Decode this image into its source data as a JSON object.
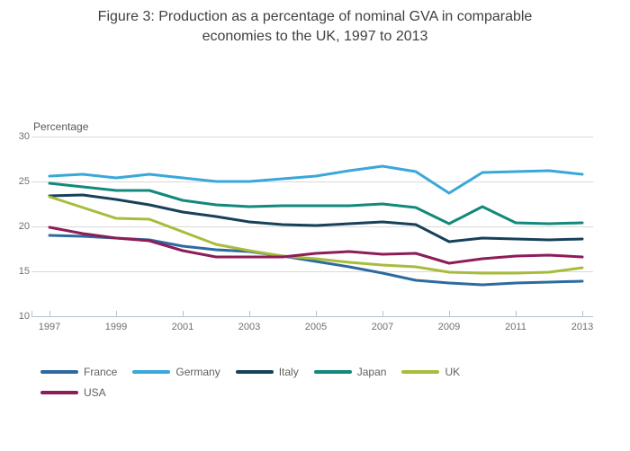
{
  "title": "Figure 3: Production as a percentage of nominal GVA in comparable economies to the UK, 1997 to 2013",
  "y_axis_label": "Percentage",
  "styles": {
    "grid_color": "#d9d9d9",
    "axis_color": "#b0c3d4",
    "title_color": "#3f3f3f",
    "tick_label_color": "#6f6f6f",
    "legend_text_color": "#606060"
  },
  "chart_data": {
    "type": "line",
    "title": "Figure 3: Production as a percentage of nominal GVA in comparable economies to the UK, 1997 to 2013",
    "xlabel": "",
    "ylabel": "Percentage",
    "x": [
      1997,
      1998,
      1999,
      2000,
      2001,
      2002,
      2003,
      2004,
      2005,
      2006,
      2007,
      2008,
      2009,
      2010,
      2011,
      2012,
      2013
    ],
    "x_tick_labels": [
      "1997",
      "1999",
      "2001",
      "2003",
      "2005",
      "2007",
      "2009",
      "2011",
      "2013"
    ],
    "y_ticks": [
      10,
      15,
      20,
      25,
      30
    ],
    "ylim": [
      10,
      30
    ],
    "grid": "horizontal",
    "legend_position": "bottom",
    "series": [
      {
        "name": "France",
        "color": "#2d6a9f",
        "values": [
          19.0,
          18.9,
          18.7,
          18.5,
          17.8,
          17.4,
          17.2,
          16.7,
          16.1,
          15.5,
          14.8,
          14.0,
          13.7,
          13.5,
          13.7,
          13.8,
          13.9
        ]
      },
      {
        "name": "Germany",
        "color": "#3aa7d9",
        "values": [
          25.6,
          25.8,
          25.4,
          25.8,
          25.4,
          25.0,
          25.0,
          25.3,
          25.6,
          26.2,
          26.7,
          26.1,
          23.7,
          26.0,
          26.1,
          26.2,
          25.8
        ]
      },
      {
        "name": "Italy",
        "color": "#17405a",
        "values": [
          23.4,
          23.5,
          23.0,
          22.4,
          21.6,
          21.1,
          20.5,
          20.2,
          20.1,
          20.3,
          20.5,
          20.2,
          18.3,
          18.7,
          18.6,
          18.5,
          18.6
        ]
      },
      {
        "name": "Japan",
        "color": "#12897b",
        "values": [
          24.8,
          24.4,
          24.0,
          24.0,
          22.9,
          22.4,
          22.2,
          22.3,
          22.3,
          22.3,
          22.5,
          22.1,
          20.3,
          22.2,
          20.4,
          20.3,
          20.4
        ]
      },
      {
        "name": "UK",
        "color": "#a8bc3c",
        "values": [
          23.3,
          22.1,
          20.9,
          20.8,
          19.4,
          18.0,
          17.3,
          16.7,
          16.4,
          16.0,
          15.7,
          15.5,
          14.9,
          14.8,
          14.8,
          14.9,
          15.4
        ]
      },
      {
        "name": "USA",
        "color": "#8d1c57",
        "values": [
          19.9,
          19.2,
          18.7,
          18.4,
          17.3,
          16.6,
          16.6,
          16.6,
          17.0,
          17.2,
          16.9,
          17.0,
          15.9,
          16.4,
          16.7,
          16.8,
          16.6
        ]
      }
    ]
  }
}
